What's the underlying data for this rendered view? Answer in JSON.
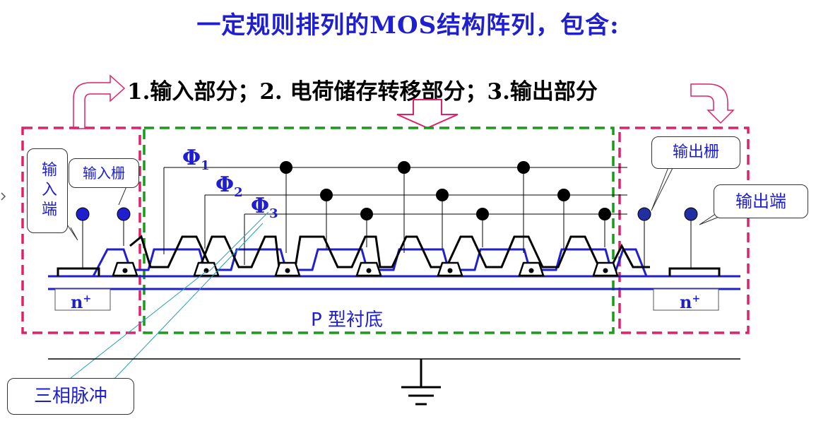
{
  "title": "一定规则排列的MOS结构阵列，包含:",
  "subtitle": "1.输入部分；2. 电荷储存转移部分；3.输出部分",
  "labels": {
    "input_terminal": "输入端",
    "input_gate": "输入栅",
    "output_gate": "输出栅",
    "output_terminal": "输出端",
    "three_phase": "三相脉冲",
    "substrate": "P  型衬底",
    "n_plus": "n",
    "n_plus_sup": "+",
    "phi_symbol": "Φ",
    "phi_sub": [
      "1",
      "2",
      "3"
    ]
  },
  "colors": {
    "blue": "#1f1fd0",
    "pink": "#e0206a",
    "green": "#1a9a1a",
    "cyan": "#20a0b0"
  }
}
